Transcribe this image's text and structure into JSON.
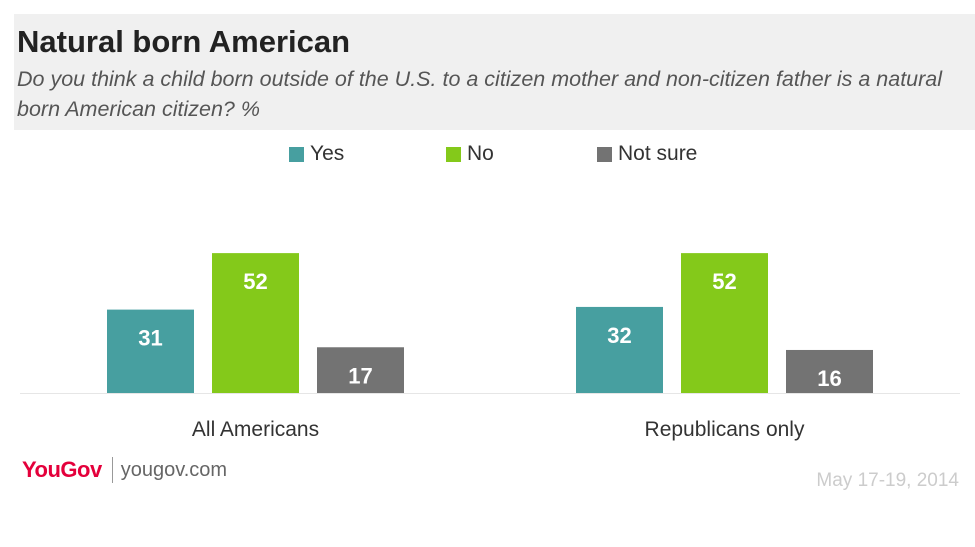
{
  "header": {
    "title": "Natural born American",
    "subtitle": "Do you think a child born outside of the U.S. to a citizen mother and non-citizen father is a natural born American citizen? %"
  },
  "footer": {
    "brand": "YouGov",
    "site": "yougov.com",
    "date": "May 17-19, 2014"
  },
  "chart_data": {
    "type": "bar",
    "categories": [
      "All Americans",
      "Republicans only"
    ],
    "series": [
      {
        "name": "Yes",
        "values": [
          31,
          32
        ],
        "color": "#479fa0"
      },
      {
        "name": "No",
        "values": [
          52,
          52
        ],
        "color": "#84c91a"
      },
      {
        "name": "Not sure",
        "values": [
          17,
          16
        ],
        "color": "#737373"
      }
    ],
    "ylim": [
      0,
      60
    ],
    "grid": false,
    "legend": "top",
    "data_labels": true
  }
}
